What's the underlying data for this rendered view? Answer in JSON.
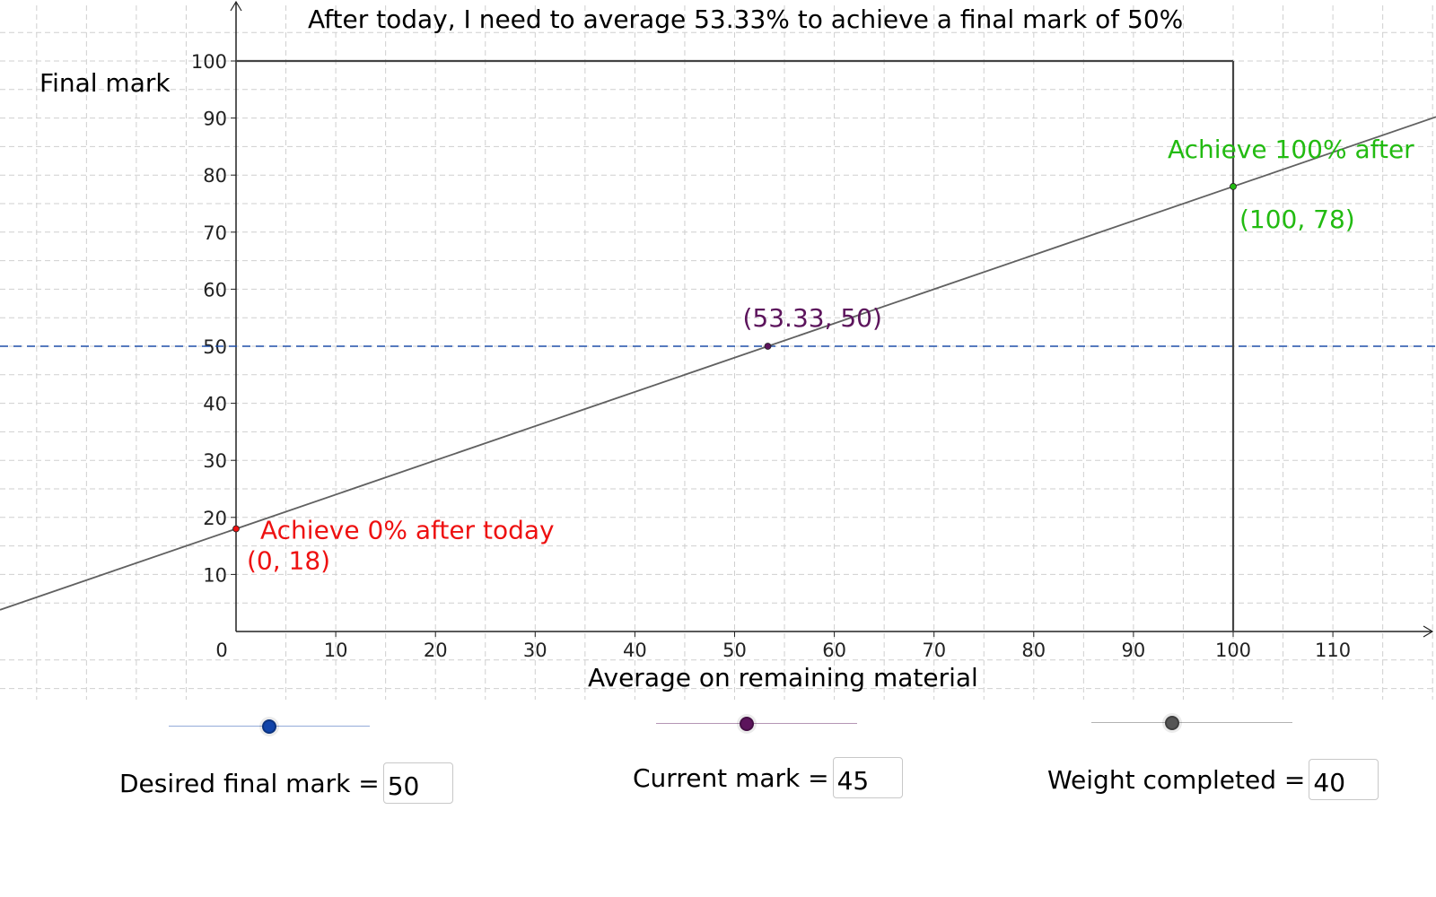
{
  "chart_data": {
    "type": "line",
    "title": "After today, I need to average 53.33% to achieve a final mark of 50%",
    "xlabel": "Average on remaining material",
    "ylabel": "Final mark",
    "x_ticks": [
      "0",
      "10",
      "20",
      "30",
      "40",
      "50",
      "60",
      "70",
      "80",
      "90",
      "100",
      "110"
    ],
    "y_ticks": [
      "10",
      "20",
      "30",
      "40",
      "50",
      "60",
      "70",
      "80",
      "90",
      "100"
    ],
    "grid": true,
    "series": [
      {
        "type": "line",
        "slope": 0.6,
        "intercept": 18,
        "color": "#616161"
      }
    ],
    "reference_lines": [
      {
        "orientation": "horizontal",
        "y": 50,
        "style": "dashed",
        "color": "#1f4fa8"
      },
      {
        "orientation": "horizontal",
        "y": 100,
        "x_range": [
          0,
          100
        ],
        "color": "#444444"
      },
      {
        "orientation": "vertical",
        "x": 100,
        "y_range": [
          0,
          100
        ],
        "color": "#444444"
      }
    ],
    "points": [
      {
        "x": 0,
        "y": 18,
        "label": "(0, 18)",
        "caption": "Achieve 0% after today",
        "color": "#ee1111"
      },
      {
        "x": 53.33,
        "y": 50,
        "label": "(53.33, 50)",
        "color": "#5c145c"
      },
      {
        "x": 100,
        "y": 78,
        "label": "(100, 78)",
        "caption": "Achieve 100% after",
        "color": "#22bb11"
      }
    ]
  },
  "controls": {
    "desired": {
      "label": "Desired final mark =",
      "value": "50",
      "slider_fraction": 0.5,
      "color": "#1144aa"
    },
    "current": {
      "label": "Current mark =",
      "value": "45",
      "slider_fraction": 0.45,
      "color": "#5c145c"
    },
    "weight": {
      "label": "Weight completed =",
      "value": "40",
      "slider_fraction": 0.4,
      "color": "#555555"
    }
  }
}
